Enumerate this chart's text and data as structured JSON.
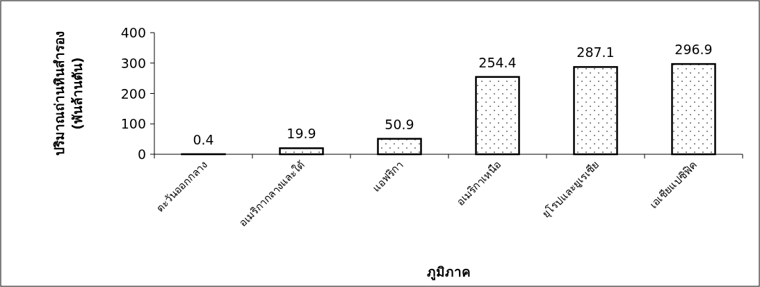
{
  "chart_data": {
    "type": "bar",
    "xlabel": "ภูมิภาค",
    "ylabel": "ปริมาณถ่านหินสำรอง (พันล้านตัน)",
    "categories": [
      "ตะวันออกกลาง",
      "อเมริกากลางและใต้",
      "แอฟริกา",
      "อเมริกาเหนือ",
      "ยุโรปและยูเรเซีย",
      "เอเชียแปซิฟิค"
    ],
    "values": [
      0.4,
      19.9,
      50.9,
      254.4,
      287.1,
      296.9
    ],
    "ylim": [
      0,
      400
    ],
    "yticks": [
      0,
      100,
      200,
      300,
      400
    ],
    "data_labels": true,
    "grid": false
  }
}
